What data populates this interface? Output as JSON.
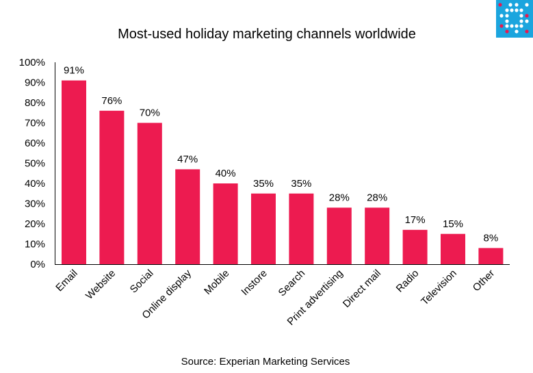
{
  "chart_data": {
    "type": "bar",
    "title": "Most-used holiday marketing channels worldwide",
    "source": "Source: Experian Marketing Services",
    "categories": [
      "Email",
      "Website",
      "Social",
      "Online display",
      "Mobile",
      "Instore",
      "Search",
      "Print advertising",
      "Direct mail",
      "Radio",
      "Television",
      "Other"
    ],
    "values": [
      91,
      76,
      70,
      47,
      40,
      35,
      35,
      28,
      28,
      17,
      15,
      8
    ],
    "data_labels": [
      "91%",
      "76%",
      "70%",
      "47%",
      "40%",
      "35%",
      "35%",
      "28%",
      "28%",
      "17%",
      "15%",
      "8%"
    ],
    "ylim": [
      0,
      100
    ],
    "yticks": [
      "0%",
      "10%",
      "20%",
      "30%",
      "40%",
      "50%",
      "60%",
      "70%",
      "80%",
      "90%",
      "100%"
    ],
    "grid": false,
    "bar_color": "#ED1B50",
    "logo_color": "#1BA5DE",
    "xlabel": "",
    "ylabel": ""
  }
}
